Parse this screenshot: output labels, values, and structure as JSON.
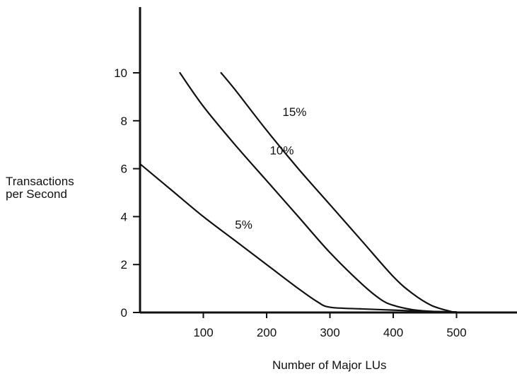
{
  "chart_data": {
    "type": "line",
    "title": "",
    "xlabel": "Number of Major LUs",
    "ylabel": [
      "Transactions",
      "per Second"
    ],
    "xlim": [
      0,
      590
    ],
    "ylim": [
      0,
      12
    ],
    "x_ticks": [
      100,
      200,
      300,
      400,
      500
    ],
    "y_ticks": [
      0,
      2,
      4,
      6,
      8,
      10
    ],
    "grid": false,
    "series": [
      {
        "name": "5%",
        "label_at": [
          150,
          3.5
        ],
        "points": [
          [
            0,
            6.2
          ],
          [
            50,
            5.1
          ],
          [
            100,
            4.0
          ],
          [
            150,
            3.0
          ],
          [
            200,
            2.0
          ],
          [
            250,
            1.0
          ],
          [
            280,
            0.45
          ],
          [
            300,
            0.22
          ],
          [
            350,
            0.15
          ],
          [
            400,
            0.1
          ],
          [
            450,
            0.05
          ],
          [
            500,
            0.02
          ]
        ]
      },
      {
        "name": "10%",
        "label_at": [
          205,
          6.6
        ],
        "points": [
          [
            63,
            10.0
          ],
          [
            100,
            8.6
          ],
          [
            150,
            7.0
          ],
          [
            200,
            5.5
          ],
          [
            250,
            4.0
          ],
          [
            300,
            2.5
          ],
          [
            350,
            1.2
          ],
          [
            380,
            0.55
          ],
          [
            400,
            0.3
          ],
          [
            430,
            0.12
          ],
          [
            460,
            0.05
          ],
          [
            500,
            0.02
          ]
        ]
      },
      {
        "name": "15%",
        "label_at": [
          225,
          8.2
        ],
        "points": [
          [
            128,
            10.0
          ],
          [
            150,
            9.3
          ],
          [
            200,
            7.6
          ],
          [
            250,
            6.0
          ],
          [
            300,
            4.5
          ],
          [
            350,
            3.0
          ],
          [
            400,
            1.5
          ],
          [
            430,
            0.8
          ],
          [
            460,
            0.3
          ],
          [
            490,
            0.05
          ],
          [
            500,
            0.0
          ]
        ]
      }
    ]
  }
}
